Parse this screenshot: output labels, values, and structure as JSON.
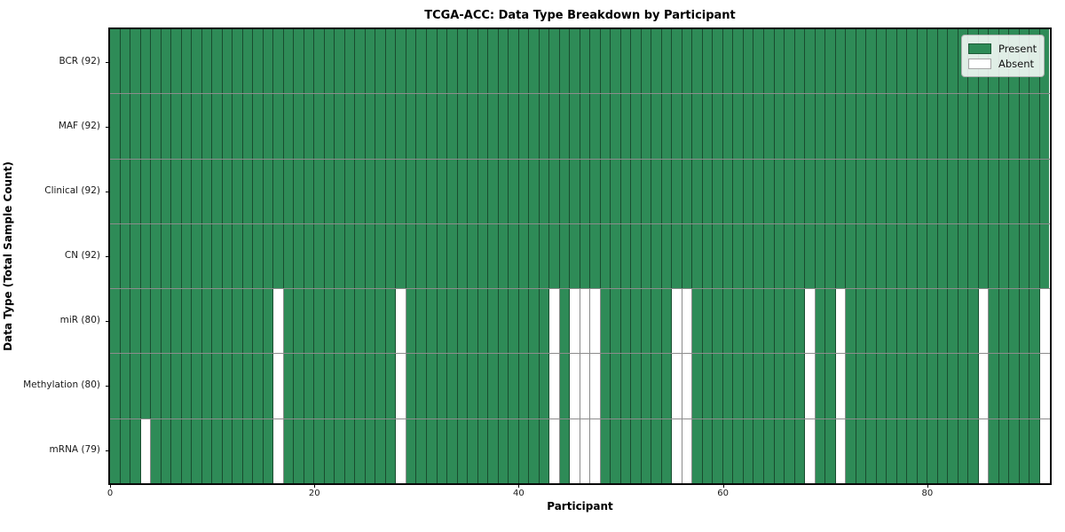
{
  "title": "TCGA-ACC: Data Type Breakdown by Participant",
  "xlabel": "Participant",
  "ylabel": "Data Type (Total Sample Count)",
  "legend": {
    "position": "upper right",
    "present_label": "Present",
    "absent_label": "Absent"
  },
  "colors": {
    "present": "#2e8b57",
    "absent": "#ffffff",
    "gridline": "rgba(0,0,0,0.45)",
    "frame": "#0a0a0a"
  },
  "chart_data": {
    "type": "heatmap",
    "title": "TCGA-ACC: Data Type Breakdown by Participant",
    "xlabel": "Participant",
    "ylabel": "Data Type (Total Sample Count)",
    "n_participants": 92,
    "x_ticks": [
      0,
      20,
      40,
      60,
      80
    ],
    "grid": true,
    "legend_entries": [
      "Present",
      "Absent"
    ],
    "rows": [
      {
        "label": "BCR (92)",
        "data_type": "BCR",
        "present_count": 92,
        "absent_participants": []
      },
      {
        "label": "MAF (92)",
        "data_type": "MAF",
        "present_count": 92,
        "absent_participants": []
      },
      {
        "label": "Clinical (92)",
        "data_type": "Clinical",
        "present_count": 92,
        "absent_participants": []
      },
      {
        "label": "CN (92)",
        "data_type": "CN",
        "present_count": 92,
        "absent_participants": []
      },
      {
        "label": "miR (80)",
        "data_type": "miR",
        "present_count": 80,
        "absent_participants": [
          16,
          28,
          43,
          45,
          46,
          47,
          55,
          56,
          68,
          71,
          85,
          91
        ]
      },
      {
        "label": "Methylation (80)",
        "data_type": "Methylation",
        "present_count": 80,
        "absent_participants": [
          16,
          28,
          43,
          45,
          46,
          47,
          55,
          56,
          68,
          71,
          85,
          91
        ]
      },
      {
        "label": "mRNA (79)",
        "data_type": "mRNA",
        "present_count": 79,
        "absent_participants": [
          3,
          16,
          28,
          43,
          45,
          46,
          47,
          55,
          56,
          68,
          71,
          85,
          91
        ]
      }
    ]
  }
}
